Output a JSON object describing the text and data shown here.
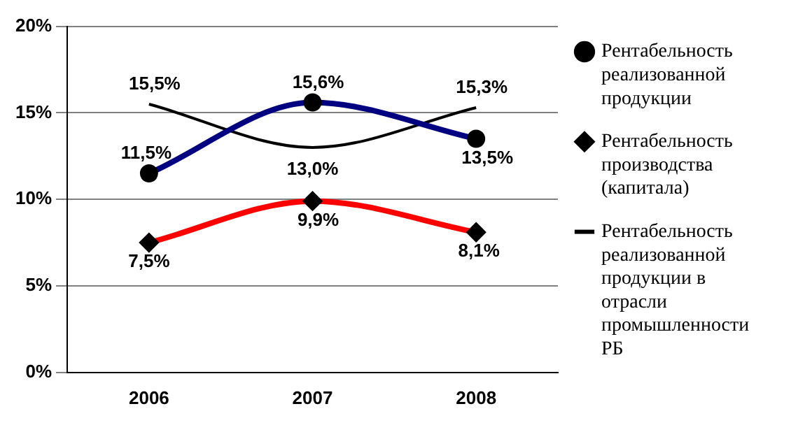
{
  "chart_data": {
    "type": "line",
    "categories": [
      "2006",
      "2007",
      "2008"
    ],
    "series": [
      {
        "name": "Рентабельность реализованной продукции",
        "color": "#000080",
        "marker": "circle",
        "values": [
          11.5,
          15.6,
          13.5
        ],
        "value_labels": [
          "11,5%",
          "15,6%",
          "13,5%"
        ]
      },
      {
        "name": "Рентабельность производства (капитала)",
        "color": "#ff0000",
        "marker": "diamond",
        "values": [
          7.5,
          9.9,
          8.1
        ],
        "value_labels": [
          "7,5%",
          "9,9%",
          "8,1%"
        ]
      },
      {
        "name": "Рентабельность реализованной продукции в отрасли промышленности РБ",
        "color": "#000000",
        "marker": "none",
        "values": [
          15.5,
          13.0,
          15.3
        ],
        "value_labels": [
          "15,5%",
          "13,0%",
          "15,3%"
        ]
      }
    ],
    "ylim": [
      0,
      20
    ],
    "yticks": [
      {
        "value": 0,
        "label": "0%"
      },
      {
        "value": 5,
        "label": "5%"
      },
      {
        "value": 10,
        "label": "10%"
      },
      {
        "value": 15,
        "label": "15%"
      },
      {
        "value": 20,
        "label": "20%"
      }
    ],
    "grid": "y",
    "legend": "right"
  }
}
